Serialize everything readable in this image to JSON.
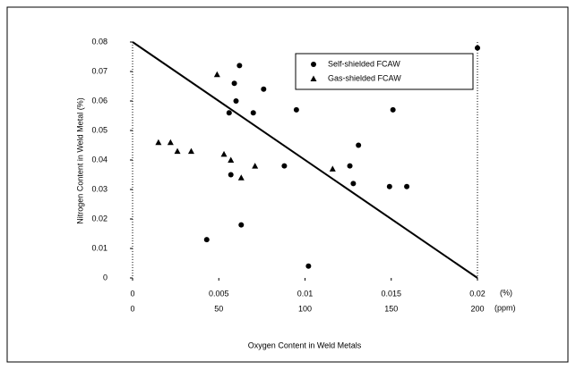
{
  "chart_data": {
    "type": "scatter",
    "xlabel": "Oxygen Content in Weld Metals",
    "ylabel": "Nitrogen Content in Weld Metal (%)",
    "xlim": [
      0,
      0.02
    ],
    "xticks": [
      0,
      0.005,
      0.01,
      0.015,
      0.02
    ],
    "x_unit": "(%)",
    "x2lim": [
      0,
      200
    ],
    "x2ticks": [
      0,
      50,
      100,
      150,
      200
    ],
    "x2_unit": "(ppm)",
    "ylim": [
      0,
      0.08
    ],
    "yticks": [
      0,
      0.01,
      0.02,
      0.03,
      0.04,
      0.05,
      0.06,
      0.07,
      0.08
    ],
    "legend": "upper right",
    "series": [
      {
        "name": "Self-shielded FCAW",
        "marker": "circle",
        "color": "#000000",
        "x": [
          0.0062,
          0.0059,
          0.006,
          0.0056,
          0.007,
          0.0076,
          0.0095,
          0.0151,
          0.0131,
          0.0126,
          0.0128,
          0.0088,
          0.0057,
          0.0149,
          0.0159,
          0.0063,
          0.0043,
          0.0102,
          0.02
        ],
        "values": [
          0.072,
          0.066,
          0.06,
          0.056,
          0.056,
          0.064,
          0.057,
          0.057,
          0.045,
          0.038,
          0.032,
          0.038,
          0.035,
          0.031,
          0.031,
          0.018,
          0.013,
          0.004,
          0.078
        ]
      },
      {
        "name": "Gas-shielded FCAW",
        "marker": "triangle",
        "color": "#000000",
        "x": [
          0.0015,
          0.0022,
          0.0026,
          0.0034,
          0.0053,
          0.0057,
          0.0063,
          0.0071,
          0.0116,
          0.0049
        ],
        "values": [
          0.046,
          0.046,
          0.043,
          0.043,
          0.042,
          0.04,
          0.034,
          0.038,
          0.037,
          0.069
        ]
      }
    ],
    "trend_line": {
      "x": [
        0,
        0.02
      ],
      "values": [
        0.08,
        0
      ]
    }
  }
}
